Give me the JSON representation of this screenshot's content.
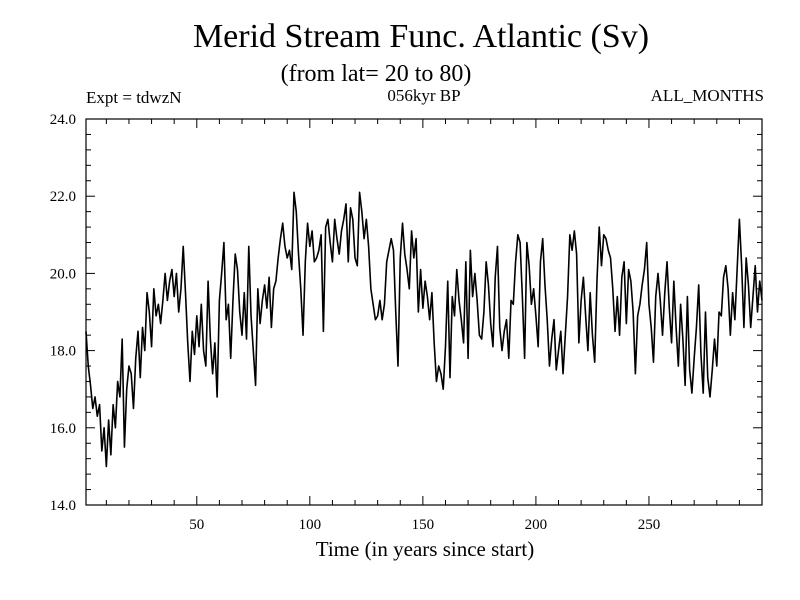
{
  "chart_data": {
    "type": "line",
    "title": "Merid Stream Func. Atlantic (Sv)",
    "subtitle": "(from lat= 20 to 80)",
    "experiment": "Expt = tdwzN",
    "epoch": "056kyr BP",
    "months": "ALL_MONTHS",
    "xlabel": "Time (in years since start)",
    "ylabel": "",
    "xlim": [
      1,
      300
    ],
    "ylim": [
      14.0,
      24.0
    ],
    "xticks": [
      50,
      100,
      150,
      200,
      250
    ],
    "xtick_labels": [
      "50",
      "100",
      "150",
      "200",
      "250"
    ],
    "yticks": [
      14.0,
      16.0,
      18.0,
      20.0,
      22.0,
      24.0
    ],
    "ytick_labels": [
      "14.0",
      "16.0",
      "18.0",
      "20.0",
      "22.0",
      "24.0"
    ],
    "line_color": "#000000",
    "series": [
      {
        "name": "Merid Stream Func. Atlantic",
        "x_start": 1,
        "x_step": 1,
        "values": [
          18.5,
          17.6,
          17.1,
          16.5,
          16.8,
          16.3,
          16.6,
          15.4,
          16.0,
          15.0,
          16.2,
          15.3,
          16.6,
          16.0,
          17.2,
          16.8,
          18.3,
          15.5,
          17.0,
          17.6,
          17.4,
          16.5,
          17.8,
          18.5,
          17.3,
          18.6,
          18.0,
          19.5,
          19.0,
          18.1,
          19.6,
          18.9,
          19.2,
          18.7,
          19.3,
          20.0,
          19.3,
          19.8,
          20.1,
          19.4,
          20.0,
          19.0,
          19.6,
          20.7,
          19.5,
          18.2,
          17.2,
          18.5,
          17.9,
          18.9,
          18.1,
          19.2,
          18.0,
          17.6,
          19.8,
          18.3,
          17.4,
          18.2,
          16.8,
          19.3,
          20.0,
          20.8,
          18.8,
          19.2,
          17.8,
          19.3,
          20.5,
          20.1,
          19.0,
          18.4,
          19.5,
          18.3,
          20.7,
          18.9,
          18.0,
          17.1,
          19.6,
          18.7,
          19.3,
          19.7,
          19.1,
          19.9,
          18.6,
          19.6,
          19.8,
          20.4,
          20.9,
          21.3,
          20.7,
          20.4,
          20.6,
          20.1,
          22.1,
          21.6,
          20.5,
          19.6,
          18.4,
          20.3,
          21.3,
          20.7,
          21.1,
          20.3,
          20.4,
          20.6,
          21.0,
          18.5,
          21.2,
          21.4,
          20.8,
          20.3,
          21.4,
          20.9,
          20.5,
          21.1,
          21.4,
          21.8,
          20.3,
          21.7,
          21.4,
          20.4,
          20.2,
          22.1,
          21.6,
          20.9,
          21.4,
          20.7,
          19.6,
          19.2,
          18.8,
          18.9,
          19.3,
          18.8,
          19.2,
          20.3,
          20.6,
          20.9,
          20.6,
          19.0,
          17.6,
          20.4,
          21.3,
          20.5,
          20.1,
          19.6,
          21.1,
          20.4,
          20.9,
          19.0,
          20.1,
          19.1,
          19.8,
          19.4,
          18.8,
          19.5,
          18.2,
          17.2,
          17.6,
          17.4,
          17.0,
          18.1,
          19.8,
          17.3,
          19.4,
          18.9,
          20.1,
          19.3,
          18.8,
          18.2,
          20.3,
          17.8,
          20.6,
          19.4,
          20.0,
          19.3,
          18.4,
          18.3,
          19.0,
          20.3,
          19.7,
          18.7,
          18.1,
          19.9,
          20.7,
          18.6,
          18.0,
          18.5,
          18.8,
          17.8,
          19.3,
          19.2,
          20.3,
          21.0,
          20.8,
          19.4,
          17.8,
          20.8,
          20.2,
          19.2,
          19.6,
          18.9,
          18.1,
          20.3,
          20.9,
          19.7,
          18.8,
          17.6,
          18.3,
          18.8,
          17.5,
          18.0,
          18.5,
          17.4,
          18.4,
          19.4,
          21.0,
          20.6,
          21.1,
          20.5,
          18.2,
          19.3,
          19.9,
          18.9,
          18.0,
          19.5,
          18.4,
          17.7,
          19.8,
          21.2,
          20.2,
          21.0,
          20.9,
          20.6,
          20.4,
          19.6,
          18.5,
          19.4,
          18.4,
          19.9,
          20.3,
          18.7,
          20.1,
          19.8,
          19.0,
          17.4,
          18.9,
          19.2,
          19.7,
          20.1,
          20.8,
          19.2,
          18.6,
          17.7,
          19.4,
          20.0,
          19.3,
          18.4,
          19.5,
          20.3,
          19.1,
          18.2,
          19.8,
          18.6,
          17.6,
          19.2,
          18.3,
          17.1,
          19.4,
          17.5,
          16.9,
          17.8,
          18.6,
          19.7,
          17.9,
          16.9,
          19.0,
          17.3,
          16.8,
          17.5,
          18.3,
          17.6,
          19.0,
          18.9,
          19.9,
          20.2,
          19.6,
          18.4,
          19.5,
          18.8,
          20.1,
          21.4,
          20.2,
          18.6,
          20.4,
          19.7,
          18.6,
          19.4,
          20.2,
          19.0,
          19.8,
          19.3
        ]
      }
    ]
  }
}
